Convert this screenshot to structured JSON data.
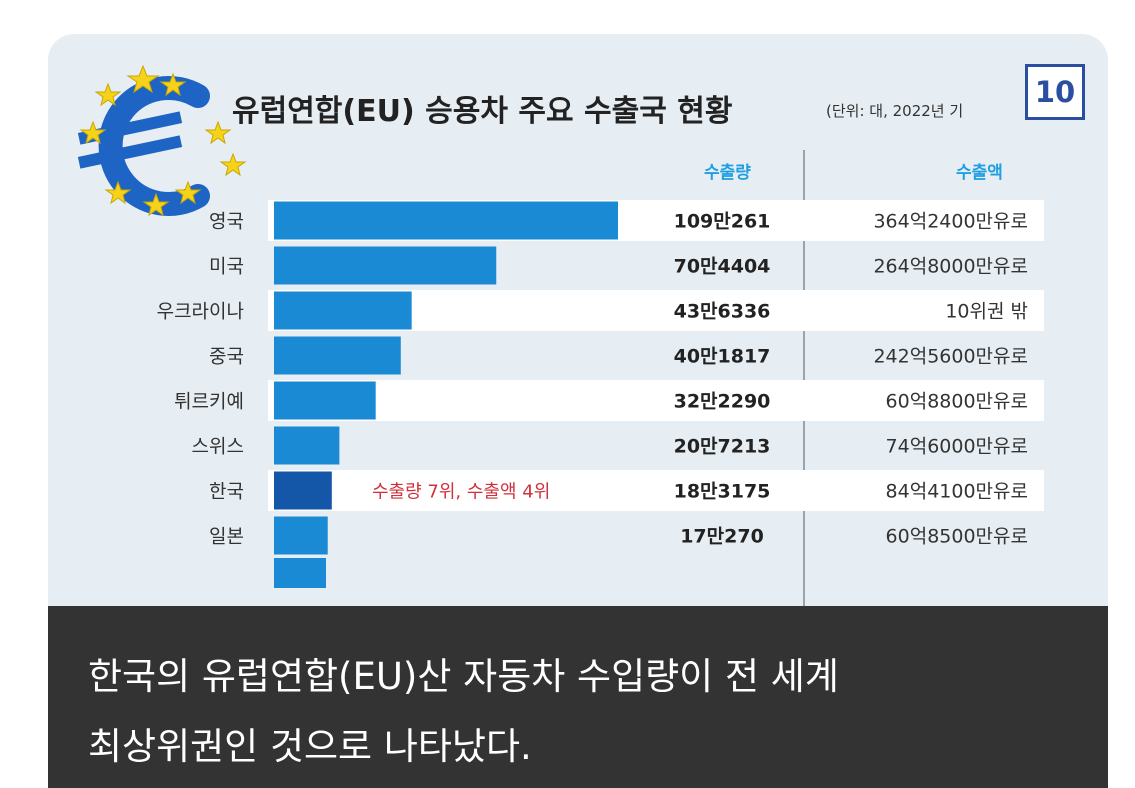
{
  "chart_data": {
    "type": "bar",
    "title": "유럽연합(EU) 승용차 주요 수출국 현황",
    "unit_note": "(단위: 대, 2022년 기",
    "column_headers": {
      "volume": "수출량",
      "value": "수출액"
    },
    "categories": [
      "영국",
      "미국",
      "우크라이나",
      "중국",
      "튀르키예",
      "스위스",
      "한국",
      "일본"
    ],
    "values": [
      1090261,
      704404,
      436336,
      401817,
      322290,
      207213,
      183175,
      170270
    ],
    "volume_labels": [
      "109만261",
      "70만4404",
      "43만6336",
      "40만1817",
      "32만2290",
      "20만7213",
      "18만3175",
      "17만270"
    ],
    "value_labels": [
      "364억2400만유로",
      "264억8000만유로",
      "10위권 밖",
      "242억5600만유로",
      "60억8800만유로",
      "74억6000만유로",
      "84억4100만유로",
      "60억8500만유로"
    ],
    "annotation": {
      "category": "한국",
      "text": "수출량 7위, 수출액 4위"
    },
    "colors": {
      "bar": "#1a8ad4",
      "highlight_bar": "#1456a8",
      "annotation": "#d0303a",
      "header": "#1f9fe0"
    }
  },
  "badge": {
    "page_number": "10"
  },
  "caption": {
    "line1": "한국의 유럽연합(EU)산 자동차 수입량이 전 세계",
    "line2": "최상위권인 것으로 나타났다."
  },
  "logo": {
    "name": "euro-logo"
  }
}
